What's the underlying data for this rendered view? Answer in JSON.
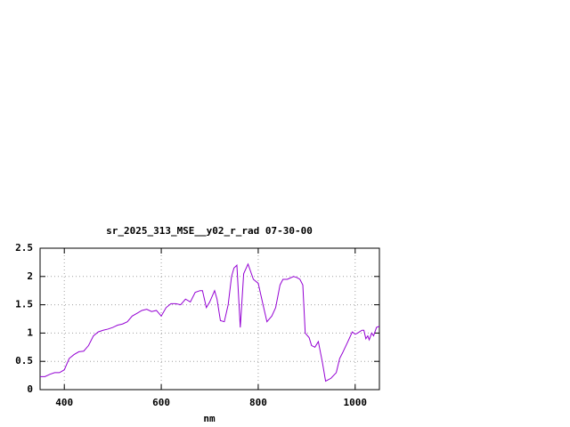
{
  "chart_data": {
    "type": "line",
    "title": "sr_2025_313_MSE__y02_r_rad 07-30-00",
    "x_label": "nm",
    "xlim": [
      350,
      1050
    ],
    "xticks": [
      400,
      600,
      800,
      1000
    ],
    "ylim": [
      0,
      2.5
    ],
    "yticks": [
      0,
      0.5,
      1,
      1.5,
      2,
      2.5
    ],
    "grid": true,
    "series": [
      {
        "color": "#9400d3",
        "x": [
          350,
          360,
          370,
          380,
          390,
          400,
          410,
          420,
          430,
          440,
          450,
          460,
          470,
          480,
          490,
          500,
          510,
          520,
          530,
          540,
          550,
          560,
          570,
          580,
          590,
          600,
          610,
          620,
          630,
          640,
          650,
          660,
          670,
          680,
          685,
          693,
          700,
          710,
          715,
          722,
          730,
          738,
          745,
          750,
          756,
          763,
          770,
          779,
          790,
          800,
          810,
          818,
          828,
          836,
          845,
          851,
          860,
          873,
          880,
          886,
          892,
          897,
          905,
          910,
          917,
          924,
          932,
          939,
          950,
          961,
          968,
          974,
          985,
          994,
          1000,
          1005,
          1014,
          1018,
          1022,
          1026,
          1029,
          1034,
          1038,
          1044,
          1050
        ],
        "values": [
          0.23,
          0.23,
          0.27,
          0.3,
          0.3,
          0.35,
          0.55,
          0.62,
          0.67,
          0.68,
          0.78,
          0.95,
          1.02,
          1.05,
          1.07,
          1.1,
          1.14,
          1.16,
          1.2,
          1.3,
          1.35,
          1.4,
          1.42,
          1.38,
          1.4,
          1.3,
          1.45,
          1.52,
          1.52,
          1.5,
          1.6,
          1.55,
          1.72,
          1.75,
          1.75,
          1.45,
          1.55,
          1.75,
          1.6,
          1.22,
          1.2,
          1.5,
          2.0,
          2.15,
          2.2,
          1.1,
          2.05,
          2.22,
          1.95,
          1.88,
          1.5,
          1.2,
          1.3,
          1.45,
          1.85,
          1.95,
          1.95,
          2.0,
          1.98,
          1.95,
          1.85,
          1.0,
          0.92,
          0.78,
          0.75,
          0.85,
          0.5,
          0.15,
          0.2,
          0.3,
          0.55,
          0.65,
          0.85,
          1.02,
          0.98,
          1.0,
          1.05,
          1.05,
          0.9,
          0.95,
          0.88,
          1.0,
          0.95,
          1.1,
          1.12
        ]
      }
    ]
  }
}
